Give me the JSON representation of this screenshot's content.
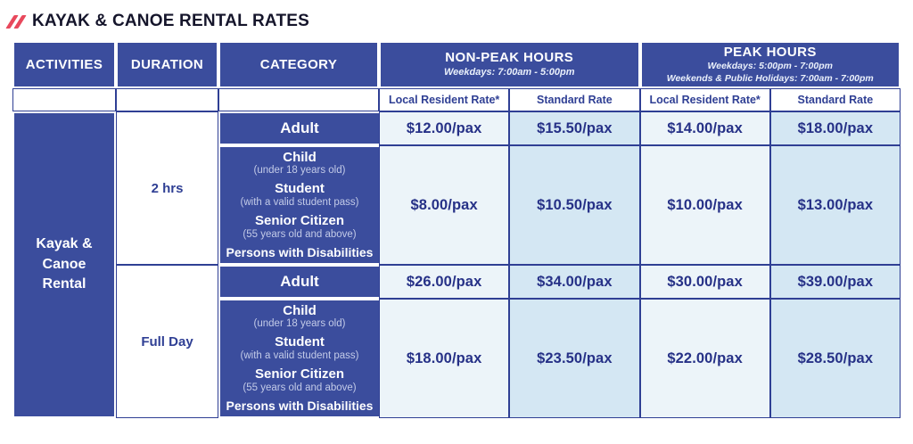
{
  "page_title": "KAYAK & CANOE RENTAL RATES",
  "colors": {
    "header_blue": "#3b4d9d",
    "border_blue": "#2f3f94",
    "light_column": "#ecf4f9",
    "light_column_alt": "#d4e7f3",
    "accent_red": "#e8485c",
    "price_text": "#263187"
  },
  "table": {
    "column_headers": {
      "activities": "ACTIVITIES",
      "duration": "DURATION",
      "category": "CATEGORY"
    },
    "non_peak": {
      "title": "NON-PEAK HOURS",
      "subtitle": "Weekdays: 7:00am - 5:00pm"
    },
    "peak": {
      "title": "PEAK HOURS",
      "subtitle_weekdays": "Weekdays: 5:00pm - 7:00pm",
      "subtitle_weekends": "Weekends & Public Holidays: 7:00am - 7:00pm"
    },
    "rate_columns": {
      "local_resident": "Local Resident Rate*",
      "standard": "Standard Rate"
    },
    "activity": "Kayak &\nCanoe\nRental",
    "durations": {
      "short": "2 hrs",
      "full": "Full Day"
    },
    "categories": {
      "adult": "Adult",
      "group": [
        {
          "name": "Child",
          "note": "(under 18 years old)"
        },
        {
          "name": "Student",
          "note": "(with a valid student pass)"
        },
        {
          "name": "Senior Citizen",
          "note": "(55 years old and above)"
        },
        {
          "name": "Persons with Disabilities",
          "note": ""
        }
      ]
    },
    "rates": {
      "two_hrs_adult": [
        "$12.00/pax",
        "$15.50/pax",
        "$14.00/pax",
        "$18.00/pax"
      ],
      "two_hrs_group": [
        "$8.00/pax",
        "$10.50/pax",
        "$10.00/pax",
        "$13.00/pax"
      ],
      "full_day_adult": [
        "$26.00/pax",
        "$34.00/pax",
        "$30.00/pax",
        "$39.00/pax"
      ],
      "full_day_group": [
        "$18.00/pax",
        "$23.50/pax",
        "$22.00/pax",
        "$28.50/pax"
      ]
    }
  },
  "chart_data": {
    "type": "table",
    "title": "KAYAK & CANOE RENTAL RATES",
    "columns": [
      "Activities",
      "Duration",
      "Category",
      "Non-Peak Local Resident Rate*",
      "Non-Peak Standard Rate",
      "Peak Local Resident Rate*",
      "Peak Standard Rate"
    ],
    "rows": [
      [
        "Kayak & Canoe Rental",
        "2 hrs",
        "Adult",
        "$12.00/pax",
        "$15.50/pax",
        "$14.00/pax",
        "$18.00/pax"
      ],
      [
        "Kayak & Canoe Rental",
        "2 hrs",
        "Child / Student / Senior Citizen / Persons with Disabilities",
        "$8.00/pax",
        "$10.50/pax",
        "$10.00/pax",
        "$13.00/pax"
      ],
      [
        "Kayak & Canoe Rental",
        "Full Day",
        "Adult",
        "$26.00/pax",
        "$34.00/pax",
        "$30.00/pax",
        "$39.00/pax"
      ],
      [
        "Kayak & Canoe Rental",
        "Full Day",
        "Child / Student / Senior Citizen / Persons with Disabilities",
        "$18.00/pax",
        "$23.50/pax",
        "$22.00/pax",
        "$28.50/pax"
      ]
    ]
  }
}
